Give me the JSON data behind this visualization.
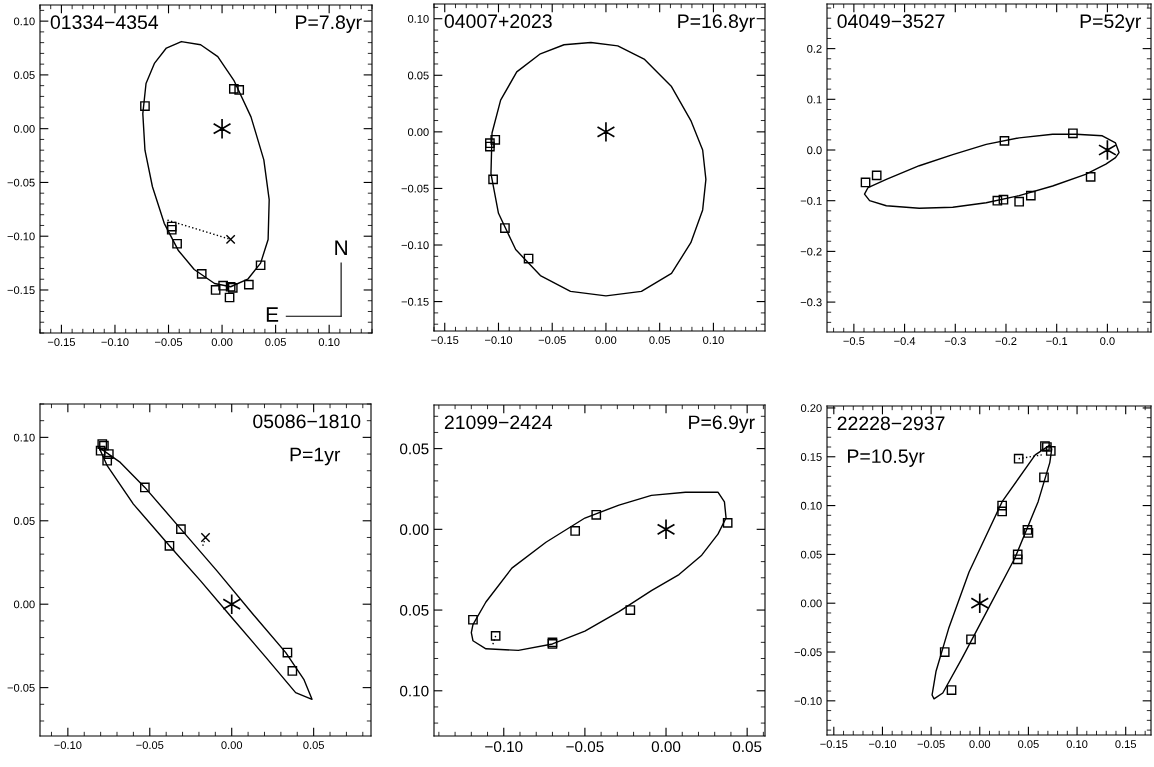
{
  "chart_data": [
    {
      "type": "scatter",
      "title": "01334−4354",
      "subtitle": "P=7.8yr",
      "annotations": [
        "N",
        "E"
      ],
      "xlim": [
        -0.17,
        0.14
      ],
      "ylim": [
        -0.19,
        0.115
      ],
      "xticks": [
        {
          "value": -0.15,
          "label": "−0.15"
        },
        {
          "value": -0.1,
          "label": "−0.10"
        },
        {
          "value": -0.05,
          "label": "−0.05"
        },
        {
          "value": 0,
          "label": "0.00"
        },
        {
          "value": 0.05,
          "label": "0.05"
        },
        {
          "value": 0.1,
          "label": "0.10"
        }
      ],
      "yticks": [
        {
          "value": -0.15,
          "label": "−0.15"
        },
        {
          "value": -0.1,
          "label": "−0.10"
        },
        {
          "value": -0.05,
          "label": "−0.05"
        },
        {
          "value": 0,
          "label": "0.00"
        },
        {
          "value": 0.05,
          "label": "0.05"
        },
        {
          "value": 0.1,
          "label": "0.10"
        }
      ],
      "series": [
        {
          "type": "line",
          "color": "#000000",
          "line_style": "dotted",
          "x": [
            -0.051,
            0.008
          ],
          "values": [
            -0.085,
            -0.103
          ]
        },
        {
          "color": "#000000",
          "marker": "square",
          "x": [
            -0.072,
            0.011,
            0.016,
            -0.047,
            -0.047,
            -0.042,
            -0.019,
            -0.006,
            0.001,
            0.008,
            0.01,
            0.007,
            0.025,
            0.036
          ],
          "values": [
            0.021,
            0.037,
            0.036,
            -0.091,
            -0.094,
            -0.107,
            -0.135,
            -0.15,
            -0.146,
            -0.147,
            -0.148,
            -0.157,
            -0.145,
            -0.127
          ]
        },
        {
          "color": "#000000",
          "marker": "cross",
          "x": [
            0.008
          ],
          "values": [
            -0.103
          ]
        },
        {
          "color": "#000000",
          "x": [
            0
          ],
          "values": [
            0
          ]
        }
      ]
    },
    {
      "type": "scatter",
      "title": "04007+2023",
      "subtitle": "P=16.8yr",
      "xlim": [
        -0.16,
        0.148
      ],
      "ylim": [
        -0.176,
        0.113
      ],
      "xticks": [
        {
          "value": -0.15,
          "label": "−0.15"
        },
        {
          "value": -0.1,
          "label": "−0.10"
        },
        {
          "value": -0.05,
          "label": "−0.05"
        },
        {
          "value": 0,
          "label": "0.00"
        },
        {
          "value": 0.05,
          "label": "0.05"
        },
        {
          "value": 0.1,
          "label": "0.10"
        }
      ],
      "yticks": [
        {
          "value": -0.15,
          "label": "−0.15"
        },
        {
          "value": -0.1,
          "label": "−0.10"
        },
        {
          "value": -0.05,
          "label": "−0.05"
        },
        {
          "value": 0,
          "label": "0.00"
        },
        {
          "value": 0.05,
          "label": "0.05"
        },
        {
          "value": 0.1,
          "label": "0.10"
        }
      ],
      "series": [
        {
          "color": "#000000",
          "marker": "square",
          "x": [
            -0.103,
            -0.108,
            -0.108,
            -0.105,
            -0.094,
            -0.072
          ],
          "values": [
            -0.007,
            -0.01,
            -0.013,
            -0.042,
            -0.085,
            -0.112
          ]
        },
        {
          "color": "#000000",
          "x": [
            0
          ],
          "values": [
            0
          ]
        }
      ]
    },
    {
      "type": "scatter",
      "title": "04049−3527",
      "subtitle": "P=52yr",
      "xlim": [
        -0.553,
        0.086
      ],
      "ylim": [
        -0.359,
        0.288
      ],
      "xticks": [
        {
          "value": -0.5,
          "label": "−0.5"
        },
        {
          "value": -0.4,
          "label": "−0.4"
        },
        {
          "value": -0.3,
          "label": "−0.3"
        },
        {
          "value": -0.2,
          "label": "−0.2"
        },
        {
          "value": -0.1,
          "label": "−0.1"
        },
        {
          "value": 0,
          "label": "0.0"
        }
      ],
      "yticks": [
        {
          "value": -0.3,
          "label": "−0.3"
        },
        {
          "value": -0.2,
          "label": "−0.2"
        },
        {
          "value": -0.1,
          "label": "−0.1"
        },
        {
          "value": 0,
          "label": "0.0"
        },
        {
          "value": 0.1,
          "label": "0.1"
        },
        {
          "value": 0.2,
          "label": "0.2"
        }
      ],
      "series": [
        {
          "color": "#000000",
          "marker": "square",
          "x": [
            -0.477,
            -0.455,
            -0.203,
            -0.068,
            -0.033,
            -0.217,
            -0.205,
            -0.174,
            -0.151
          ],
          "values": [
            -0.064,
            -0.05,
            0.018,
            0.033,
            -0.053,
            -0.1,
            -0.098,
            -0.102,
            -0.09
          ]
        },
        {
          "color": "#000000",
          "x": [
            0
          ],
          "values": [
            0
          ]
        }
      ]
    },
    {
      "type": "scatter",
      "title": "05086−1810",
      "subtitle": "P=1yr",
      "xlim": [
        -0.117,
        0.085
      ],
      "ylim": [
        -0.079,
        0.12
      ],
      "xticks": [
        {
          "value": -0.1,
          "label": "−0.10"
        },
        {
          "value": -0.05,
          "label": "−0.05"
        },
        {
          "value": 0,
          "label": "0.00"
        },
        {
          "value": 0.05,
          "label": "0.05"
        }
      ],
      "yticks": [
        {
          "value": -0.05,
          "label": "−0.05"
        },
        {
          "value": 0,
          "label": "0.00"
        },
        {
          "value": 0.05,
          "label": "0.05"
        },
        {
          "value": 0.1,
          "label": "0.10"
        }
      ],
      "series": [
        {
          "type": "line",
          "color": "#000000",
          "line_style": "dotted",
          "x": [
            -0.016,
            -0.018
          ],
          "values": [
            0.04,
            0.034
          ]
        },
        {
          "color": "#000000",
          "marker": "square",
          "x": [
            -0.079,
            -0.078,
            -0.08,
            -0.075,
            -0.076,
            -0.053,
            -0.031,
            -0.038,
            0.034,
            0.037
          ],
          "values": [
            0.096,
            0.095,
            0.092,
            0.09,
            0.086,
            0.07,
            0.045,
            0.035,
            -0.029,
            -0.04
          ]
        },
        {
          "color": "#000000",
          "marker": "cross",
          "x": [
            -0.016
          ],
          "values": [
            0.04
          ]
        },
        {
          "color": "#000000",
          "x": [
            0
          ],
          "values": [
            0
          ]
        }
      ]
    },
    {
      "type": "scatter",
      "title": "21099−2424",
      "subtitle": "P=6.9yr",
      "xlim": [
        -0.143,
        0.061
      ],
      "ylim": [
        -0.128,
        0.077
      ],
      "xticks": [
        {
          "value": -0.1,
          "label": "−0.10"
        },
        {
          "value": -0.05,
          "label": "−0.05"
        },
        {
          "value": 0,
          "label": "0.00"
        },
        {
          "value": 0.05,
          "label": "0.05"
        }
      ],
      "yticks": [
        {
          "value": -0.1,
          "label": "0.10"
        },
        {
          "value": -0.05,
          "label": "0.05"
        },
        {
          "value": 0,
          "label": "0.00"
        },
        {
          "value": 0.05,
          "label": "0.05"
        }
      ],
      "series": [
        {
          "type": "line",
          "color": "#000000",
          "line_style": "dotted",
          "x": [
            -0.105,
            -0.107
          ],
          "values": [
            -0.066,
            -0.072
          ]
        },
        {
          "color": "#000000",
          "marker": "square",
          "x": [
            -0.119,
            -0.105,
            -0.07,
            -0.07,
            -0.056,
            -0.043,
            -0.022,
            0.038
          ],
          "values": [
            -0.056,
            -0.066,
            -0.071,
            -0.07,
            -0.001,
            0.009,
            -0.05,
            0.004
          ]
        },
        {
          "color": "#000000",
          "x": [
            0
          ],
          "values": [
            0
          ]
        }
      ]
    },
    {
      "type": "scatter",
      "title": "22228−2937",
      "subtitle": "P=10.5yr",
      "xlim": [
        -0.157,
        0.176
      ],
      "ylim": [
        -0.135,
        0.202
      ],
      "xticks": [
        {
          "value": -0.15,
          "label": "−0.15"
        },
        {
          "value": -0.1,
          "label": "−0.10"
        },
        {
          "value": -0.05,
          "label": "−0.05"
        },
        {
          "value": 0,
          "label": "0.00"
        },
        {
          "value": 0.05,
          "label": "0.05"
        },
        {
          "value": 0.1,
          "label": "0.10"
        },
        {
          "value": 0.15,
          "label": "0.15"
        }
      ],
      "yticks": [
        {
          "value": -0.1,
          "label": "−0.10"
        },
        {
          "value": -0.05,
          "label": "−0.05"
        },
        {
          "value": 0,
          "label": "0.00"
        },
        {
          "value": 0.05,
          "label": "0.05"
        },
        {
          "value": 0.1,
          "label": "0.10"
        },
        {
          "value": 0.15,
          "label": "0.15"
        },
        {
          "value": 0.2,
          "label": "0.20"
        }
      ],
      "series": [
        {
          "type": "line",
          "color": "#000000",
          "line_style": "dotted",
          "x": [
            0.04,
            0.064
          ],
          "values": [
            0.148,
            0.152
          ]
        },
        {
          "color": "#000000",
          "marker": "square",
          "x": [
            0.04,
            0.067,
            0.069,
            0.073,
            0.066,
            0.023,
            0.023,
            0.049,
            0.05,
            0.039,
            0.039,
            -0.009,
            -0.036,
            -0.029
          ],
          "values": [
            0.148,
            0.161,
            0.16,
            0.156,
            0.129,
            0.1,
            0.094,
            0.075,
            0.072,
            0.05,
            0.045,
            -0.037,
            -0.05,
            -0.089
          ]
        },
        {
          "color": "#000000",
          "x": [
            0
          ],
          "values": [
            0
          ]
        }
      ]
    }
  ]
}
